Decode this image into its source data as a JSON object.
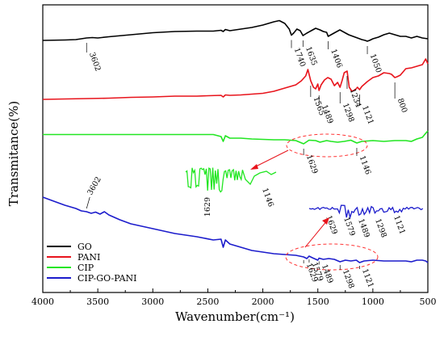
{
  "chart_data": {
    "type": "line",
    "xlabel": "Wavenumber(cm⁻¹)",
    "ylabel": "Transmitance(%)",
    "xlim": [
      4000,
      500
    ],
    "x_ticks": [
      "4000",
      "3500",
      "3000",
      "2500",
      "2000",
      "1500",
      "1000",
      "500"
    ],
    "y_ticks": false,
    "legend": {
      "placement": "bottom-left"
    },
    "series": [
      {
        "name": "GO",
        "color": "#000000",
        "x": [
          4000,
          3800,
          3700,
          3650,
          3602,
          3550,
          3500,
          3400,
          3200,
          3000,
          2800,
          2600,
          2450,
          2380,
          2360,
          2340,
          2300,
          2200,
          2100,
          2000,
          1900,
          1850,
          1800,
          1760,
          1740,
          1720,
          1690,
          1660,
          1635,
          1600,
          1560,
          1520,
          1480,
          1450,
          1420,
          1406,
          1380,
          1340,
          1300,
          1260,
          1220,
          1180,
          1140,
          1100,
          1070,
          1050,
          1030,
          1000,
          950,
          900,
          850,
          800,
          750,
          700,
          650,
          600,
          550,
          500
        ],
        "y": [
          50,
          49.5,
          49,
          48,
          47,
          46.5,
          47,
          45.5,
          43,
          40.5,
          39,
          38.5,
          38.5,
          37.5,
          39,
          36.5,
          38,
          36,
          34,
          31,
          27,
          25.5,
          29,
          36,
          43.5,
          41,
          36,
          38,
          44,
          41,
          38,
          35,
          37,
          39,
          40,
          45,
          43,
          40,
          37,
          40,
          43,
          45,
          47,
          49,
          50,
          51,
          50,
          48,
          46,
          43,
          41,
          43,
          45,
          45,
          47,
          45,
          47,
          48
        ]
      },
      {
        "name": "PANI",
        "color": "#e8141c",
        "x": [
          4000,
          3800,
          3600,
          3400,
          3200,
          3000,
          2800,
          2600,
          2500,
          2380,
          2360,
          2340,
          2300,
          2200,
          2000,
          1900,
          1800,
          1700,
          1650,
          1610,
          1590,
          1565,
          1540,
          1520,
          1500,
          1489,
          1470,
          1440,
          1410,
          1380,
          1350,
          1320,
          1298,
          1280,
          1260,
          1234,
          1215,
          1190,
          1160,
          1140,
          1121,
          1100,
          1050,
          1000,
          950,
          900,
          850,
          830,
          800,
          780,
          750,
          700,
          650,
          600,
          550,
          520,
          500
        ],
        "y": [
          123,
          122.5,
          122,
          121.5,
          120.5,
          120,
          119,
          119,
          118.5,
          118,
          120,
          117.5,
          118,
          117.5,
          115.5,
          113,
          109,
          105,
          100,
          94,
          86,
          100,
          108,
          110,
          104,
          112,
          105,
          99,
          96,
          98,
          106,
          102,
          108,
          100,
          90,
          88,
          108,
          113,
          111,
          108,
          111,
          107,
          101,
          96,
          94,
          90,
          91,
          92,
          96,
          95,
          93,
          85,
          84,
          82,
          80,
          73,
          79
        ]
      },
      {
        "name": "CIP",
        "color": "#22e622",
        "x": [
          4000,
          3800,
          3600,
          3400,
          3200,
          3000,
          2800,
          2600,
          2450,
          2380,
          2360,
          2340,
          2300,
          2200,
          2100,
          2000,
          1900,
          1800,
          1700,
          1629,
          1580,
          1520,
          1480,
          1420,
          1380,
          1320,
          1260,
          1200,
          1146,
          1100,
          1000,
          900,
          800,
          700,
          650,
          600,
          550,
          520,
          500
        ],
        "y": [
          166.5,
          166.5,
          166.5,
          166.5,
          166.5,
          166.5,
          166.5,
          166.5,
          166.5,
          169,
          175,
          168,
          171,
          171,
          172,
          172.5,
          173,
          173,
          174,
          178,
          173.5,
          174,
          176,
          174,
          175,
          176,
          175,
          173.5,
          177,
          175,
          174,
          175,
          174,
          174,
          175,
          172,
          170,
          165,
          162
        ]
      },
      {
        "name": "CIP-GO-PANI",
        "color": "#1c1ccc",
        "x": [
          4000,
          3900,
          3800,
          3700,
          3650,
          3602,
          3560,
          3520,
          3480,
          3440,
          3400,
          3300,
          3200,
          3000,
          2800,
          2600,
          2450,
          2380,
          2360,
          2340,
          2300,
          2200,
          2100,
          2000,
          1900,
          1800,
          1700,
          1629,
          1600,
          1579,
          1550,
          1500,
          1489,
          1450,
          1400,
          1350,
          1298,
          1250,
          1200,
          1150,
          1121,
          1080,
          1000,
          900,
          800,
          700,
          650,
          600,
          550,
          520,
          500
        ],
        "y": [
          244,
          249,
          254,
          258,
          261,
          262,
          264,
          262.5,
          265,
          262,
          266,
          272,
          277,
          283,
          289,
          293,
          297,
          296,
          306,
          297,
          302,
          306,
          310,
          312,
          314,
          315,
          316,
          318,
          320,
          317,
          319,
          322,
          319.5,
          321,
          320,
          321,
          324,
          322,
          323,
          322,
          325,
          323,
          322,
          323,
          323,
          323,
          324,
          322,
          322,
          323,
          325
        ]
      }
    ],
    "annotations": [
      {
        "text": "3602",
        "series": "GO"
      },
      {
        "text": "1740",
        "series": "GO"
      },
      {
        "text": "1635",
        "series": "GO"
      },
      {
        "text": "1406",
        "series": "GO"
      },
      {
        "text": "1050",
        "series": "GO"
      },
      {
        "text": "1565",
        "series": "PANI"
      },
      {
        "text": "1489",
        "series": "PANI"
      },
      {
        "text": "1298",
        "series": "PANI"
      },
      {
        "text": "1234",
        "series": "PANI"
      },
      {
        "text": "1121",
        "series": "PANI"
      },
      {
        "text": "800",
        "series": "PANI"
      },
      {
        "text": "1629",
        "series": "CIP"
      },
      {
        "text": "1146",
        "series": "CIP"
      },
      {
        "text": "1629",
        "series": "CIP inset"
      },
      {
        "text": "1146",
        "series": "CIP inset"
      },
      {
        "text": "3602",
        "series": "CIP-GO-PANI"
      },
      {
        "text": "1629",
        "series": "CIP-GO-PANI"
      },
      {
        "text": "1579",
        "series": "CIP-GO-PANI"
      },
      {
        "text": "1489",
        "series": "CIP-GO-PANI"
      },
      {
        "text": "1298",
        "series": "CIP-GO-PANI"
      },
      {
        "text": "1121",
        "series": "CIP-GO-PANI"
      },
      {
        "text": "1629",
        "series": "CIP-GO-PANI inset"
      },
      {
        "text": "1579",
        "series": "CIP-GO-PANI inset"
      },
      {
        "text": "1489",
        "series": "CIP-GO-PANI inset"
      },
      {
        "text": "1298",
        "series": "CIP-GO-PANI inset"
      },
      {
        "text": "1121",
        "series": "CIP-GO-PANI inset"
      }
    ],
    "insets": [
      {
        "name": "CIP inset",
        "color": "#22e622",
        "labels": [
          "1629",
          "1146"
        ]
      },
      {
        "name": "CIP-GO-PANI inset",
        "color": "#1c1ccc",
        "labels": [
          "1629",
          "1579",
          "1489",
          "1298",
          "1121"
        ]
      }
    ]
  }
}
